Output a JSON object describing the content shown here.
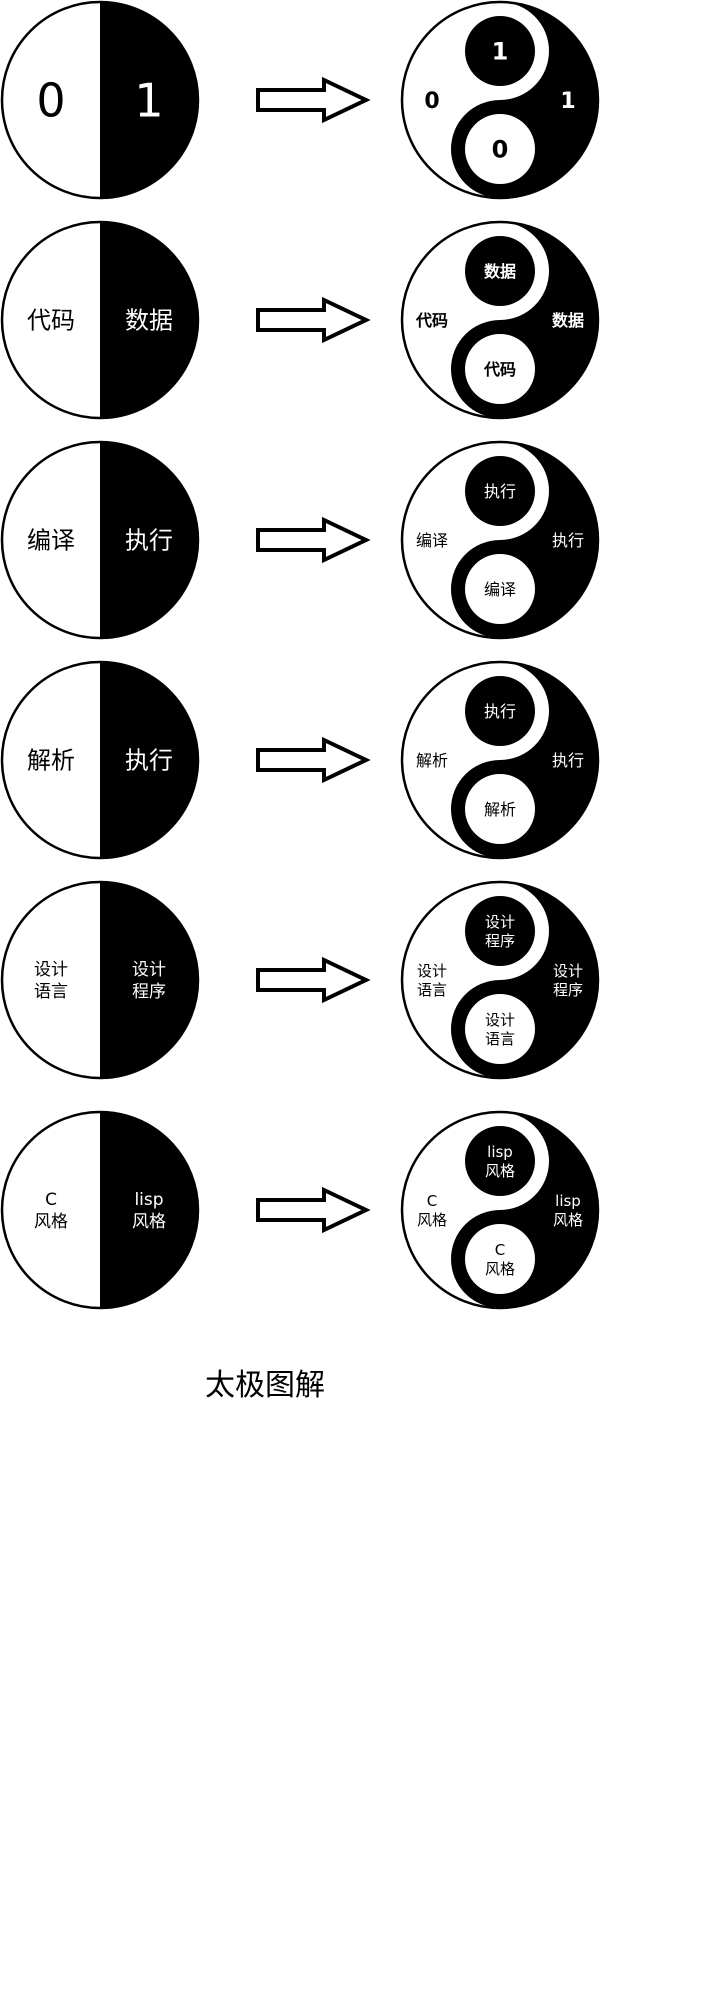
{
  "rows": [
    {
      "left": {
        "white": [
          "0"
        ],
        "black": [
          "1"
        ]
      },
      "right": {
        "white": [
          "0"
        ],
        "black": [
          "1"
        ],
        "top_dot": [
          "1"
        ],
        "bottom_dot": [
          "0"
        ]
      }
    },
    {
      "left": {
        "white": [
          "代码"
        ],
        "black": [
          "数据"
        ]
      },
      "right": {
        "white": [
          "代码"
        ],
        "black": [
          "数据"
        ],
        "top_dot": [
          "数据"
        ],
        "bottom_dot": [
          "代码"
        ]
      }
    },
    {
      "left": {
        "white": [
          "编译"
        ],
        "black": [
          "执行"
        ]
      },
      "right": {
        "white": [
          "编译"
        ],
        "black": [
          "执行"
        ],
        "top_dot": [
          "执行"
        ],
        "bottom_dot": [
          "编译"
        ]
      }
    },
    {
      "left": {
        "white": [
          "解析"
        ],
        "black": [
          "执行"
        ]
      },
      "right": {
        "white": [
          "解析"
        ],
        "black": [
          "执行"
        ],
        "top_dot": [
          "执行"
        ],
        "bottom_dot": [
          "解析"
        ]
      }
    },
    {
      "left": {
        "white": [
          "设计",
          "语言"
        ],
        "black": [
          "设计",
          "程序"
        ]
      },
      "right": {
        "white": [
          "设计",
          "语言"
        ],
        "black": [
          "设计",
          "程序"
        ],
        "top_dot": [
          "设计",
          "程序"
        ],
        "bottom_dot": [
          "设计",
          "语言"
        ]
      }
    },
    {
      "left": {
        "white": [
          "C",
          "风格"
        ],
        "black": [
          "lisp",
          "风格"
        ]
      },
      "right": {
        "white": [
          "C",
          "风格"
        ],
        "black": [
          "lisp",
          "风格"
        ],
        "top_dot": [
          "lisp",
          "风格"
        ],
        "bottom_dot": [
          "C",
          "风格"
        ]
      }
    }
  ],
  "caption": "太极图解",
  "colors": {
    "yin": "#000000",
    "yang": "#ffffff"
  }
}
